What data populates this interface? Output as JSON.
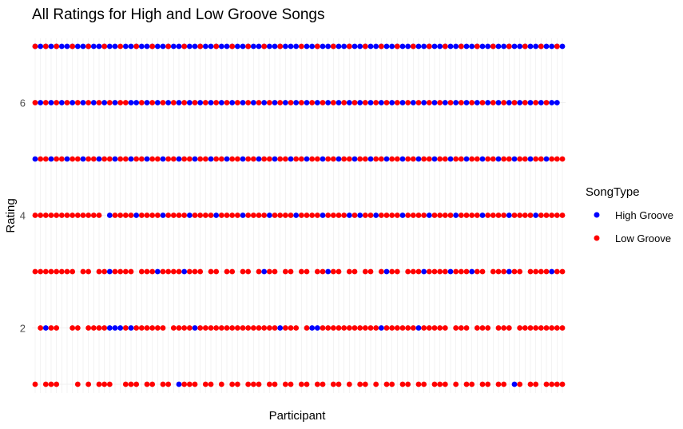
{
  "chart_data": {
    "type": "scatter",
    "title": "All Ratings for High and Low Groove Songs",
    "xlabel": "Participant",
    "ylabel": "Rating",
    "ylim": [
      1,
      7
    ],
    "y_ticks": [
      2,
      4,
      6
    ],
    "x_ticks_shown": false,
    "grid": true,
    "legend_title": "SongType",
    "legend_position": "right",
    "participant_count": 100,
    "series": [
      {
        "name": "High Groove",
        "color": "#0000ff",
        "points": [
          {
            "rating": 7,
            "participants": [
              1,
              2,
              3,
              4,
              5,
              6,
              7,
              8,
              9,
              10,
              11,
              12,
              13,
              14,
              15,
              16,
              18,
              19,
              20,
              21,
              22,
              23,
              24,
              25,
              26,
              27,
              28,
              29,
              30,
              31,
              32,
              33,
              34,
              35,
              36,
              37,
              38,
              39,
              40,
              41,
              42,
              43,
              44,
              45,
              46,
              47,
              48,
              49,
              50,
              52,
              53,
              54,
              55,
              56,
              57,
              58,
              59,
              60,
              61,
              62,
              63,
              64,
              65,
              66,
              67,
              68,
              69,
              70,
              71,
              72,
              73,
              74,
              75,
              76,
              77,
              78,
              79,
              80,
              81,
              82,
              83,
              84,
              85,
              86,
              87,
              88,
              89,
              90,
              91,
              92,
              93,
              94,
              95,
              96,
              97,
              98,
              99,
              100
            ]
          },
          {
            "rating": 6,
            "participants": [
              2,
              4,
              6,
              8,
              10,
              12,
              14,
              16,
              19,
              20,
              22,
              24,
              26,
              28,
              30,
              32,
              34,
              36,
              38,
              40,
              42,
              44,
              46,
              48,
              50,
              52,
              54,
              56,
              58,
              60,
              62,
              64,
              66,
              68,
              70,
              72,
              74,
              76,
              78,
              80,
              82,
              84,
              86,
              88,
              90,
              92,
              94,
              96,
              98,
              99
            ]
          },
          {
            "rating": 5,
            "participants": [
              1,
              4,
              7,
              10,
              13,
              16,
              19,
              22,
              25,
              28,
              31,
              34,
              37,
              40,
              43,
              46,
              49,
              52,
              55,
              58,
              61,
              64,
              67,
              70,
              73,
              76,
              79,
              82,
              85,
              88,
              91,
              94,
              97
            ]
          },
          {
            "rating": 4,
            "participants": [
              15,
              20,
              25,
              30,
              35,
              40,
              45,
              50,
              55,
              60,
              62,
              65,
              70,
              75,
              80,
              85,
              90,
              95
            ]
          },
          {
            "rating": 3,
            "participants": [
              15,
              24,
              29,
              44,
              56,
              67,
              74,
              79,
              83,
              90,
              98
            ]
          },
          {
            "rating": 2,
            "participants": [
              3,
              15,
              16,
              17,
              19,
              31,
              47,
              53,
              54,
              66,
              73
            ]
          },
          {
            "rating": 1,
            "participants": [
              28,
              91
            ]
          }
        ]
      },
      {
        "name": "Low Groove",
        "color": "#ff0000",
        "points": [
          {
            "rating": 7,
            "participants": [
              1,
              3,
              5,
              8,
              11,
              14,
              17,
              20,
              23,
              26,
              29,
              32,
              35,
              38,
              41,
              44,
              47,
              51,
              54,
              57,
              60,
              63,
              66,
              69,
              72,
              75,
              78,
              81,
              84,
              87,
              90,
              93,
              96,
              99
            ]
          },
          {
            "rating": 6,
            "participants": [
              1,
              3,
              5,
              7,
              9,
              11,
              13,
              15,
              17,
              18,
              21,
              23,
              25,
              27,
              29,
              31,
              33,
              35,
              37,
              39,
              41,
              43,
              45,
              47,
              49,
              51,
              53,
              55,
              57,
              59,
              61,
              63,
              65,
              67,
              69,
              71,
              73,
              75,
              77,
              79,
              81,
              83,
              85,
              87,
              89,
              91,
              93,
              95,
              97
            ]
          },
          {
            "rating": 5,
            "participants": [
              2,
              3,
              5,
              6,
              8,
              9,
              11,
              12,
              14,
              15,
              17,
              18,
              20,
              21,
              23,
              24,
              26,
              27,
              29,
              30,
              32,
              33,
              35,
              36,
              38,
              39,
              41,
              42,
              44,
              45,
              47,
              48,
              50,
              51,
              53,
              54,
              56,
              57,
              59,
              60,
              62,
              63,
              65,
              66,
              68,
              69,
              71,
              72,
              74,
              75,
              77,
              78,
              80,
              81,
              83,
              84,
              86,
              87,
              89,
              90,
              92,
              93,
              95,
              96,
              98,
              99,
              100
            ]
          },
          {
            "rating": 4,
            "participants": [
              1,
              2,
              3,
              4,
              5,
              6,
              7,
              8,
              9,
              10,
              11,
              12,
              13,
              16,
              17,
              18,
              19,
              21,
              22,
              23,
              24,
              26,
              27,
              28,
              29,
              31,
              32,
              33,
              34,
              36,
              37,
              38,
              39,
              41,
              42,
              43,
              44,
              46,
              47,
              48,
              49,
              51,
              52,
              53,
              54,
              56,
              57,
              58,
              59,
              61,
              63,
              64,
              66,
              67,
              68,
              69,
              71,
              72,
              73,
              74,
              76,
              77,
              78,
              79,
              81,
              82,
              83,
              84,
              86,
              87,
              88,
              89,
              91,
              92,
              93,
              94,
              96,
              97,
              98,
              99,
              100
            ]
          },
          {
            "rating": 3,
            "participants": [
              1,
              2,
              3,
              4,
              5,
              6,
              7,
              8,
              10,
              11,
              13,
              14,
              16,
              17,
              18,
              19,
              21,
              22,
              23,
              25,
              26,
              27,
              28,
              30,
              31,
              32,
              34,
              35,
              37,
              38,
              40,
              41,
              43,
              45,
              46,
              48,
              49,
              51,
              52,
              54,
              55,
              57,
              58,
              60,
              61,
              63,
              64,
              66,
              68,
              69,
              71,
              72,
              73,
              75,
              76,
              77,
              78,
              80,
              81,
              82,
              84,
              85,
              87,
              88,
              89,
              91,
              92,
              94,
              95,
              96,
              97,
              99,
              100
            ]
          },
          {
            "rating": 2,
            "participants": [
              2,
              4,
              5,
              8,
              9,
              11,
              12,
              13,
              14,
              18,
              20,
              21,
              22,
              23,
              24,
              25,
              27,
              28,
              29,
              30,
              32,
              33,
              34,
              35,
              36,
              37,
              38,
              39,
              40,
              41,
              42,
              43,
              44,
              45,
              46,
              48,
              49,
              50,
              52,
              55,
              56,
              57,
              58,
              59,
              60,
              61,
              62,
              63,
              64,
              65,
              67,
              68,
              69,
              70,
              71,
              72,
              74,
              75,
              76,
              77,
              78,
              80,
              81,
              82,
              84,
              85,
              86,
              88,
              89,
              90,
              92,
              93,
              94,
              95,
              96,
              97,
              98,
              99,
              100
            ]
          },
          {
            "rating": 1,
            "participants": [
              1,
              3,
              4,
              5,
              9,
              11,
              13,
              14,
              15,
              18,
              19,
              20,
              22,
              23,
              25,
              26,
              29,
              30,
              31,
              33,
              34,
              36,
              38,
              39,
              41,
              42,
              43,
              45,
              46,
              48,
              49,
              51,
              52,
              54,
              55,
              57,
              58,
              60,
              62,
              63,
              65,
              67,
              68,
              70,
              71,
              73,
              74,
              76,
              77,
              78,
              80,
              82,
              83,
              85,
              86,
              88,
              89,
              92,
              94,
              95,
              97,
              98,
              99,
              100
            ]
          }
        ]
      }
    ]
  }
}
